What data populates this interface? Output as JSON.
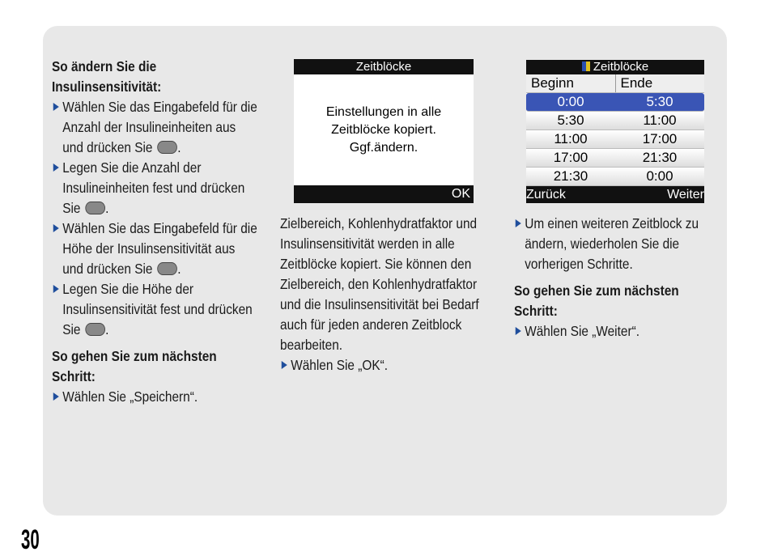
{
  "col1": {
    "heading": "So ändern Sie die Insulinsensitivität:",
    "bullets": [
      "Wählen Sie das Eingabefeld für die Anzahl der Insulineinheiten aus und drücken Sie",
      "Legen Sie die Anzahl der Insulineinheiten fest und drücken Sie",
      "Wählen Sie das Eingabefeld für die Höhe der Insulinsensitivität aus und drücken Sie",
      "Legen Sie die Höhe der Insulinsensitivität fest und drücken Sie"
    ],
    "next_heading": "So gehen Sie zum nächsten Schritt:",
    "next_bullet": "Wählen Sie „Speichern“."
  },
  "screen1": {
    "title": "Zeitblöcke",
    "message": "Einstellungen in alle Zeitblöcke kopiert. Ggf.ändern.",
    "ok": "OK"
  },
  "col2": {
    "text": "Zielbereich, Kohlenhydratfaktor und Insulinsensitivität werden in alle Zeitblöcke kopiert. Sie können den Zielbereich, den Kohlenhydratfaktor und die Insulinsensitivität bei Bedarf auch für jeden anderen Zeitblock bearbeiten.",
    "bullet": "Wählen Sie „OK“."
  },
  "screen2": {
    "title": "Zeitblöcke",
    "headers": [
      "Beginn",
      "Ende"
    ],
    "rows": [
      [
        "0:00",
        "5:30"
      ],
      [
        "5:30",
        "11:00"
      ],
      [
        "11:00",
        "17:00"
      ],
      [
        "17:00",
        "21:30"
      ],
      [
        "21:30",
        "0:00"
      ]
    ],
    "back": "Zurück",
    "next": "Weiter"
  },
  "col3": {
    "bullet": "Um einen weiteren Zeitblock zu ändern, wiederholen Sie die vorherigen Schritte.",
    "next_heading": "So gehen Sie zum nächsten Schritt:",
    "next_bullet": "Wählen Sie „Weiter“."
  },
  "page_number": "30"
}
